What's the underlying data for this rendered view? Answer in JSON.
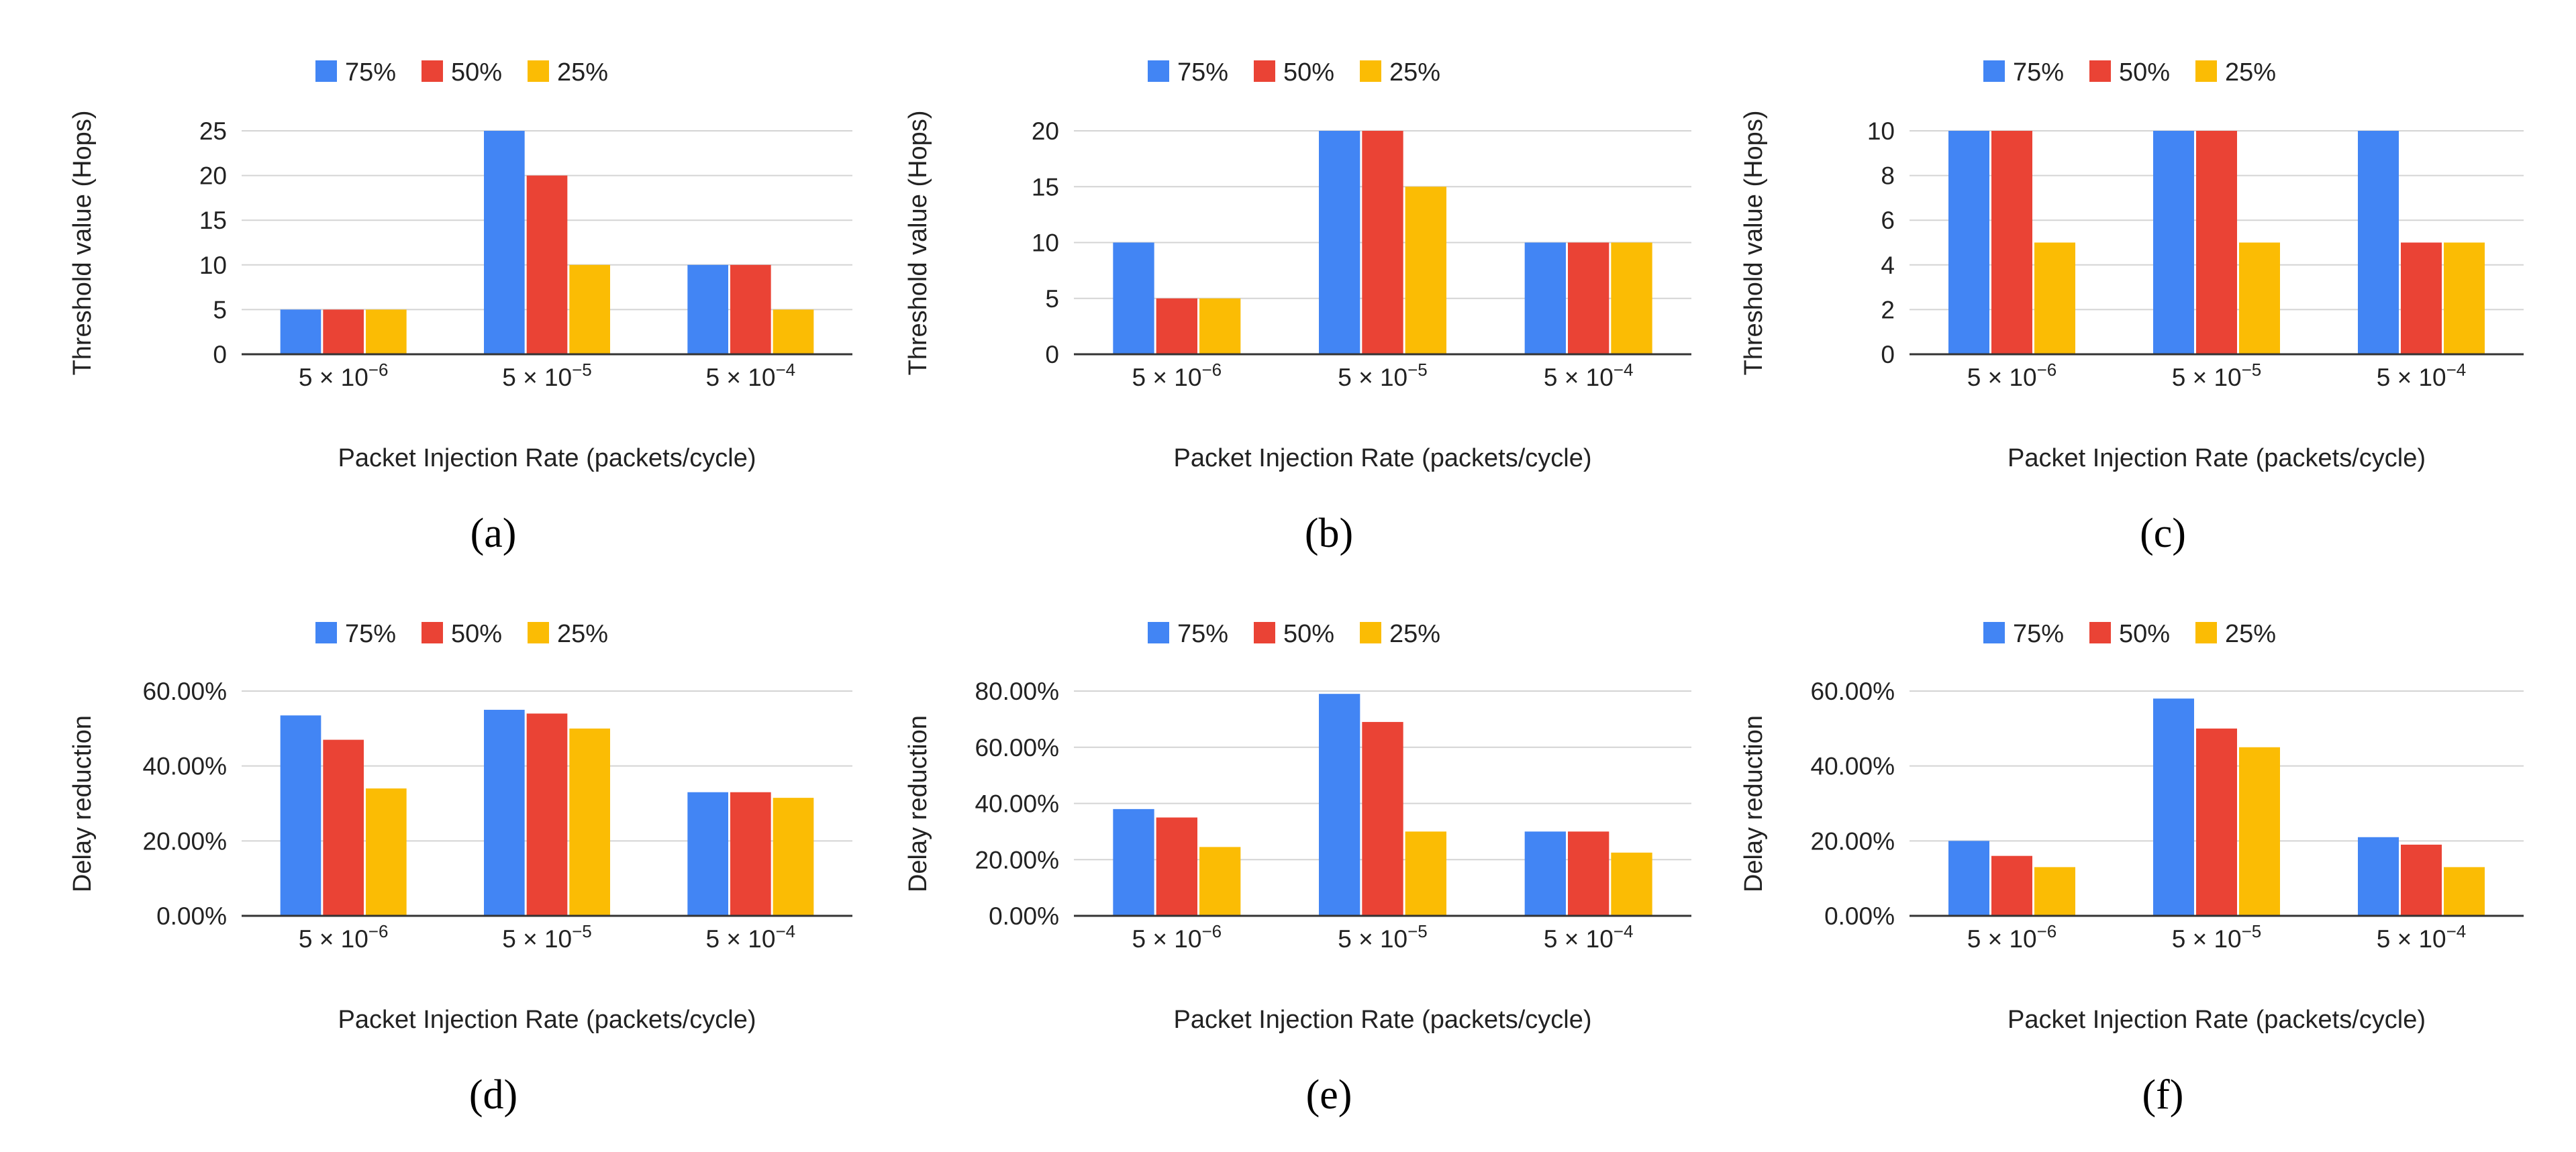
{
  "colors": {
    "s75": "#4285F4",
    "s50": "#EA4335",
    "s25": "#FBBC04",
    "grid": "#d4d4d4",
    "axis": "#333333"
  },
  "chart_data": [
    {
      "type": "bar",
      "panel": "(a)",
      "ylabel": "Threshold value (Hops)",
      "xlabel": "Packet Injection Rate (packets/cycle)",
      "categories": [
        {
          "base": "5 × 10",
          "exp": "−6"
        },
        {
          "base": "5 × 10",
          "exp": "−5"
        },
        {
          "base": "5 × 10",
          "exp": "−4"
        }
      ],
      "series": [
        {
          "name": "75%",
          "values": [
            5,
            25,
            10
          ]
        },
        {
          "name": "50%",
          "values": [
            5,
            20,
            10
          ]
        },
        {
          "name": "25%",
          "values": [
            5,
            10,
            5
          ]
        }
      ],
      "ylim": [
        0,
        25
      ],
      "yticks": [
        0,
        5,
        10,
        15,
        20,
        25
      ],
      "ytick_labels": [
        "0",
        "5",
        "10",
        "15",
        "20",
        "25"
      ],
      "legend": "top",
      "grid": true
    },
    {
      "type": "bar",
      "panel": "(b)",
      "ylabel": "Threshold value (Hops)",
      "xlabel": "Packet Injection Rate (packets/cycle)",
      "categories": [
        {
          "base": "5 × 10",
          "exp": "−6"
        },
        {
          "base": "5 × 10",
          "exp": "−5"
        },
        {
          "base": "5 × 10",
          "exp": "−4"
        }
      ],
      "series": [
        {
          "name": "75%",
          "values": [
            10,
            20,
            10
          ]
        },
        {
          "name": "50%",
          "values": [
            5,
            20,
            10
          ]
        },
        {
          "name": "25%",
          "values": [
            5,
            15,
            10
          ]
        }
      ],
      "ylim": [
        0,
        20
      ],
      "yticks": [
        0,
        5,
        10,
        15,
        20
      ],
      "ytick_labels": [
        "0",
        "5",
        "10",
        "15",
        "20"
      ],
      "legend": "top",
      "grid": true
    },
    {
      "type": "bar",
      "panel": "(c)",
      "ylabel": "Threshold value (Hops)",
      "xlabel": "Packet Injection Rate (packets/cycle)",
      "categories": [
        {
          "base": "5 × 10",
          "exp": "−6"
        },
        {
          "base": "5 × 10",
          "exp": "−5"
        },
        {
          "base": "5 × 10",
          "exp": "−4"
        }
      ],
      "series": [
        {
          "name": "75%",
          "values": [
            10,
            10,
            10
          ]
        },
        {
          "name": "50%",
          "values": [
            10,
            10,
            5
          ]
        },
        {
          "name": "25%",
          "values": [
            5,
            5,
            5
          ]
        }
      ],
      "ylim": [
        0,
        10
      ],
      "yticks": [
        0,
        2,
        4,
        6,
        8,
        10
      ],
      "ytick_labels": [
        "0",
        "2",
        "4",
        "6",
        "8",
        "10"
      ],
      "legend": "top",
      "grid": true
    },
    {
      "type": "bar",
      "panel": "(d)",
      "ylabel": "Delay reduction",
      "xlabel": "Packet Injection Rate (packets/cycle)",
      "categories": [
        {
          "base": "5 × 10",
          "exp": "−6"
        },
        {
          "base": "5 × 10",
          "exp": "−5"
        },
        {
          "base": "5 × 10",
          "exp": "−4"
        }
      ],
      "series": [
        {
          "name": "75%",
          "values": [
            53.5,
            55,
            33
          ]
        },
        {
          "name": "50%",
          "values": [
            47,
            54,
            33
          ]
        },
        {
          "name": "25%",
          "values": [
            34,
            50,
            31.5
          ]
        }
      ],
      "ylim": [
        0,
        60
      ],
      "yticks": [
        0,
        20,
        40,
        60
      ],
      "ytick_labels": [
        "0.00%",
        "20.00%",
        "40.00%",
        "60.00%"
      ],
      "legend": "top",
      "grid": true
    },
    {
      "type": "bar",
      "panel": "(e)",
      "ylabel": "Delay reduction",
      "xlabel": "Packet Injection Rate (packets/cycle)",
      "categories": [
        {
          "base": "5 × 10",
          "exp": "−6"
        },
        {
          "base": "5 × 10",
          "exp": "−5"
        },
        {
          "base": "5 × 10",
          "exp": "−4"
        }
      ],
      "series": [
        {
          "name": "75%",
          "values": [
            38,
            79,
            30
          ]
        },
        {
          "name": "50%",
          "values": [
            35,
            69,
            30
          ]
        },
        {
          "name": "25%",
          "values": [
            24.5,
            30,
            22.5
          ]
        }
      ],
      "ylim": [
        0,
        80
      ],
      "yticks": [
        0,
        20,
        40,
        60,
        80
      ],
      "ytick_labels": [
        "0.00%",
        "20.00%",
        "40.00%",
        "60.00%",
        "80.00%"
      ],
      "legend": "top",
      "grid": true
    },
    {
      "type": "bar",
      "panel": "(f)",
      "ylabel": "Delay reduction",
      "xlabel": "Packet Injection Rate (packets/cycle)",
      "categories": [
        {
          "base": "5 × 10",
          "exp": "−6"
        },
        {
          "base": "5 × 10",
          "exp": "−5"
        },
        {
          "base": "5 × 10",
          "exp": "−4"
        }
      ],
      "series": [
        {
          "name": "75%",
          "values": [
            20,
            58,
            21
          ]
        },
        {
          "name": "50%",
          "values": [
            16,
            50,
            19
          ]
        },
        {
          "name": "25%",
          "values": [
            13,
            45,
            13
          ]
        }
      ],
      "ylim": [
        0,
        60
      ],
      "yticks": [
        0,
        20,
        40,
        60
      ],
      "ytick_labels": [
        "0.00%",
        "20.00%",
        "40.00%",
        "60.00%"
      ],
      "legend": "top",
      "grid": true
    }
  ]
}
